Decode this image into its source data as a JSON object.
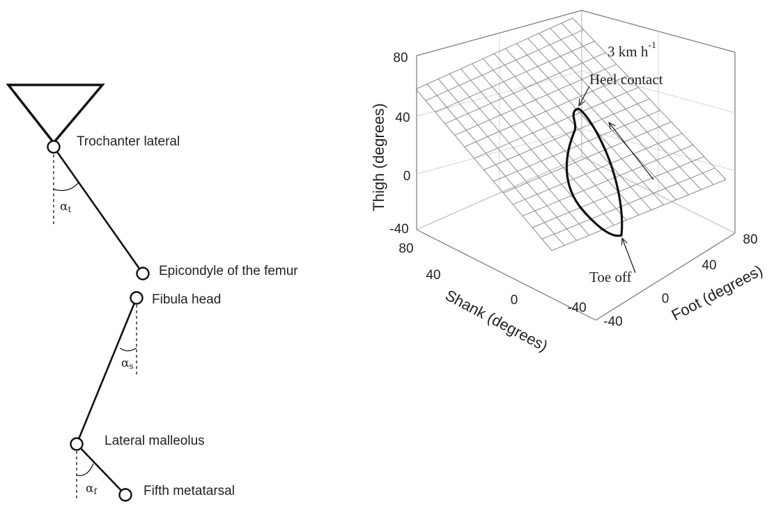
{
  "left_diagram": {
    "labels": [
      "Trochanter lateral",
      "Epicondyle of the femur",
      "Fibula head",
      "Lateral malleolus",
      "Fifth metatarsal"
    ],
    "angles": [
      {
        "symbol": "α",
        "subscript": "t"
      },
      {
        "symbol": "α",
        "subscript": "s"
      },
      {
        "symbol": "α",
        "subscript": "f"
      }
    ]
  },
  "plot": {
    "z_label": "Thigh (degrees)",
    "y_label": "Shank (degrees)",
    "x_label": "Foot (degrees)",
    "z_ticks": [
      80,
      40,
      0,
      -40
    ],
    "shank_ticks": [
      80,
      40,
      0,
      -40
    ],
    "foot_ticks": [
      -40,
      0,
      40,
      80
    ],
    "annotations": {
      "speed": "3 km h",
      "speed_exponent": "-1",
      "heel": "Heel contact",
      "toe": "Toe off"
    }
  }
}
